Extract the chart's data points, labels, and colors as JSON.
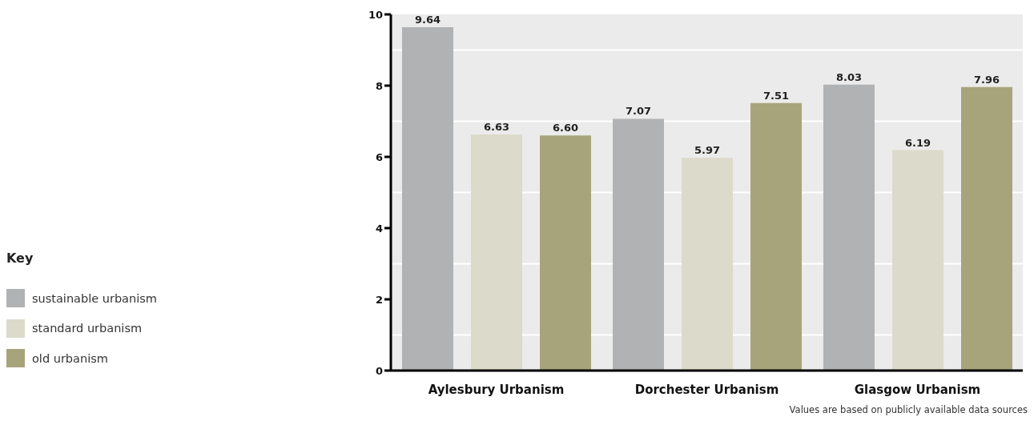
{
  "chart_data": {
    "type": "bar",
    "legend_title": "Key",
    "legend": "left",
    "grid": "y",
    "data_labels": true,
    "categories": [
      "Aylesbury Urbanism",
      "Dorchester Urbanism",
      "Glasgow Urbanism"
    ],
    "series": [
      {
        "name": "sustainable urbanism",
        "color": "#b1b2b4",
        "values": [
          9.64,
          7.07,
          8.03
        ],
        "value_labels": [
          "9.64",
          "7.07",
          "8.03"
        ]
      },
      {
        "name": "standard urbanism",
        "color": "#dcdacb",
        "values": [
          6.63,
          5.97,
          6.19
        ],
        "value_labels": [
          "6.63",
          "5.97",
          "6.19"
        ]
      },
      {
        "name": "old urbanism",
        "color": "#a7a47b",
        "values": [
          6.6,
          7.51,
          7.96
        ],
        "value_labels": [
          "6.60",
          "7.51",
          "7.96"
        ]
      }
    ],
    "ylim": [
      0,
      10
    ],
    "yticks": [
      0,
      2,
      4,
      6,
      8,
      10
    ],
    "annotations": [
      "Values are based on publicly available data sources"
    ]
  }
}
